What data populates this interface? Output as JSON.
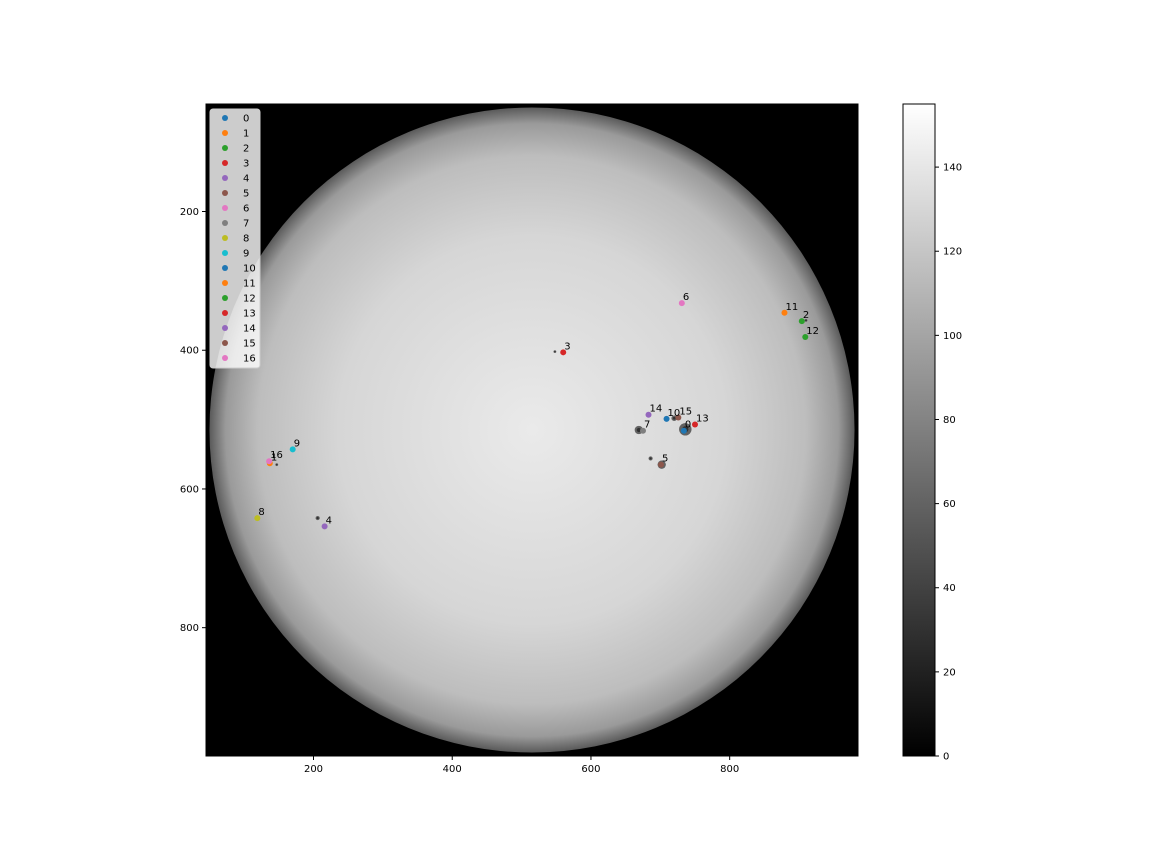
{
  "chart_data": {
    "type": "scatter",
    "title": "",
    "xlabel": "",
    "ylabel": "",
    "image": "solar disk, grayscale intensity",
    "xlim": [
      45,
      985
    ],
    "ylim": [
      985,
      45
    ],
    "x_ticks": [
      200,
      400,
      600,
      800
    ],
    "y_ticks": [
      200,
      400,
      600,
      800
    ],
    "grid": false,
    "legend_placement": "upper-left",
    "colorbar": {
      "range": [
        0,
        155
      ],
      "ticks": [
        0,
        20,
        40,
        60,
        80,
        100,
        120,
        140
      ],
      "colormap": "gray"
    },
    "sun": {
      "cx": 515,
      "cy": 515,
      "r": 465
    },
    "series": [
      {
        "name": "0",
        "color": "#1f77b4",
        "x": [
          734
        ],
        "y": [
          516
        ]
      },
      {
        "name": "1",
        "color": "#ff7f0e",
        "x": [
          137
        ],
        "y": [
          563
        ]
      },
      {
        "name": "2",
        "color": "#2ca02c",
        "x": [
          904
        ],
        "y": [
          358
        ]
      },
      {
        "name": "3",
        "color": "#d62728",
        "x": [
          560
        ],
        "y": [
          403
        ]
      },
      {
        "name": "4",
        "color": "#9467bd",
        "x": [
          216
        ],
        "y": [
          654
        ]
      },
      {
        "name": "5",
        "color": "#8c564b",
        "x": [
          701
        ],
        "y": [
          565
        ]
      },
      {
        "name": "6",
        "color": "#e377c2",
        "x": [
          731
        ],
        "y": [
          332
        ]
      },
      {
        "name": "7",
        "color": "#7f7f7f",
        "x": [
          675
        ],
        "y": [
          516
        ]
      },
      {
        "name": "8",
        "color": "#bcbd22",
        "x": [
          119
        ],
        "y": [
          642
        ]
      },
      {
        "name": "9",
        "color": "#17becf",
        "x": [
          170
        ],
        "y": [
          543
        ]
      },
      {
        "name": "10",
        "color": "#1f77b4",
        "x": [
          709
        ],
        "y": [
          499
        ]
      },
      {
        "name": "11",
        "color": "#ff7f0e",
        "x": [
          879
        ],
        "y": [
          346
        ]
      },
      {
        "name": "12",
        "color": "#2ca02c",
        "x": [
          909
        ],
        "y": [
          381
        ]
      },
      {
        "name": "13",
        "color": "#d62728",
        "x": [
          750
        ],
        "y": [
          507
        ]
      },
      {
        "name": "14",
        "color": "#9467bd",
        "x": [
          683
        ],
        "y": [
          493
        ]
      },
      {
        "name": "15",
        "color": "#8c564b",
        "x": [
          726
        ],
        "y": [
          497
        ]
      },
      {
        "name": "16",
        "color": "#e377c2",
        "x": [
          136
        ],
        "y": [
          560
        ]
      }
    ],
    "dark_features": [
      {
        "x": 736,
        "y": 514,
        "r": 9
      },
      {
        "x": 702,
        "y": 565,
        "r": 6
      },
      {
        "x": 686,
        "y": 556,
        "r": 3
      },
      {
        "x": 669,
        "y": 515,
        "r": 6
      },
      {
        "x": 720,
        "y": 498,
        "r": 4
      },
      {
        "x": 206,
        "y": 642,
        "r": 3
      },
      {
        "x": 147,
        "y": 565,
        "r": 2
      },
      {
        "x": 548,
        "y": 402,
        "r": 2
      },
      {
        "x": 910,
        "y": 357,
        "r": 2
      }
    ]
  }
}
